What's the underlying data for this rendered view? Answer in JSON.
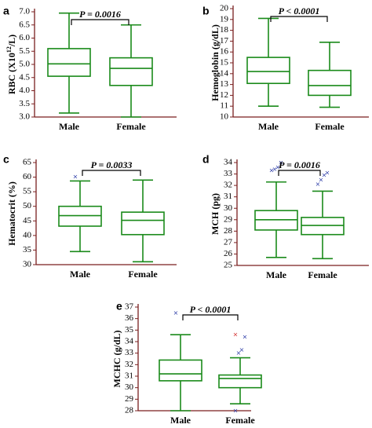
{
  "colors": {
    "axis": "#7a1f1f",
    "box": "#1a8a1a",
    "outlier": "#2f3fa8",
    "outlier_alt": "#d43030",
    "text": "#000000"
  },
  "chart_data": [
    {
      "panel": "a",
      "type": "box",
      "ylabel": "RBC (X10",
      "ylabel_sup": "12",
      "ylabel_end": "/L)",
      "categories": [
        "Male",
        "Female"
      ],
      "ylim": [
        3.0,
        7.0
      ],
      "yticks": [
        "3.0",
        "3.5",
        "4.0",
        "4.5",
        "5.0",
        "5.5",
        "6.0",
        "6.5",
        "7.0"
      ],
      "tick_values": [
        3.0,
        3.5,
        4.0,
        4.5,
        5.0,
        5.5,
        6.0,
        6.5,
        7.0
      ],
      "boxes": [
        {
          "min": 3.15,
          "q1": 4.55,
          "median": 5.02,
          "q3": 5.6,
          "max": 6.95,
          "outliers": []
        },
        {
          "min": 3.0,
          "q1": 4.2,
          "median": 4.85,
          "q3": 5.25,
          "max": 6.5,
          "outliers": []
        }
      ],
      "pvalue": "P = 0.0016"
    },
    {
      "panel": "b",
      "type": "box",
      "ylabel": "Hemoglobin (g/dL)",
      "categories": [
        "Male",
        "Female"
      ],
      "ylim": [
        10,
        20
      ],
      "yticks": [
        "10",
        "11",
        "12",
        "13",
        "14",
        "15",
        "16",
        "17",
        "18",
        "19",
        "20"
      ],
      "tick_values": [
        10,
        11,
        12,
        13,
        14,
        15,
        16,
        17,
        18,
        19,
        20
      ],
      "boxes": [
        {
          "min": 11.0,
          "q1": 13.1,
          "median": 14.2,
          "q3": 15.5,
          "max": 19.1,
          "outliers": []
        },
        {
          "min": 10.9,
          "q1": 12.0,
          "median": 12.9,
          "q3": 14.3,
          "max": 16.9,
          "outliers": []
        }
      ],
      "pvalue": "P < 0.0001"
    },
    {
      "panel": "c",
      "type": "box",
      "ylabel": "Hematocrit (%)",
      "categories": [
        "Male",
        "Female"
      ],
      "ylim": [
        30,
        65
      ],
      "yticks": [
        "30",
        "35",
        "40",
        "45",
        "50",
        "55",
        "60",
        "65"
      ],
      "tick_values": [
        30,
        35,
        40,
        45,
        50,
        55,
        60,
        65
      ],
      "boxes": [
        {
          "min": 34.5,
          "q1": 43.2,
          "median": 46.8,
          "q3": 50.0,
          "max": 58.7,
          "outliers": [
            60.2
          ]
        },
        {
          "min": 31.0,
          "q1": 40.3,
          "median": 45.2,
          "q3": 48.0,
          "max": 59.0,
          "outliers": []
        }
      ],
      "pvalue": "P = 0.0033"
    },
    {
      "panel": "d",
      "type": "box",
      "ylabel": "MCH (pg)",
      "categories": [
        "Male",
        "Female"
      ],
      "ylim": [
        25,
        34
      ],
      "yticks": [
        "25",
        "26",
        "27",
        "28",
        "29",
        "30",
        "31",
        "32",
        "33",
        "34"
      ],
      "tick_values": [
        25,
        26,
        27,
        28,
        29,
        30,
        31,
        32,
        33,
        34
      ],
      "boxes": [
        {
          "min": 25.7,
          "q1": 28.1,
          "median": 29.0,
          "q3": 29.8,
          "max": 32.3,
          "outliers": [
            33.3,
            33.4,
            33.6,
            34.0
          ]
        },
        {
          "min": 25.6,
          "q1": 27.7,
          "median": 28.5,
          "q3": 29.2,
          "max": 31.5,
          "outliers": [
            32.1,
            32.5,
            32.9,
            33.1
          ]
        }
      ],
      "pvalue": "P = 0.0016"
    },
    {
      "panel": "e",
      "type": "box",
      "ylabel": "MCHC (g/dL)",
      "categories": [
        "Male",
        "Female"
      ],
      "ylim": [
        28,
        37
      ],
      "yticks": [
        "28",
        "29",
        "30",
        "31",
        "32",
        "33",
        "34",
        "35",
        "36",
        "37"
      ],
      "tick_values": [
        28,
        29,
        30,
        31,
        32,
        33,
        34,
        35,
        36,
        37
      ],
      "boxes": [
        {
          "min": 28.0,
          "q1": 30.6,
          "median": 31.2,
          "q3": 32.4,
          "max": 34.6,
          "outliers": [
            36.5
          ]
        },
        {
          "min": 28.6,
          "q1": 30.0,
          "median": 30.8,
          "q3": 31.1,
          "max": 32.6,
          "outliers": [
            28.0,
            33.0,
            33.3,
            34.4,
            34.6
          ]
        }
      ],
      "pvalue": "P < 0.0001"
    }
  ]
}
